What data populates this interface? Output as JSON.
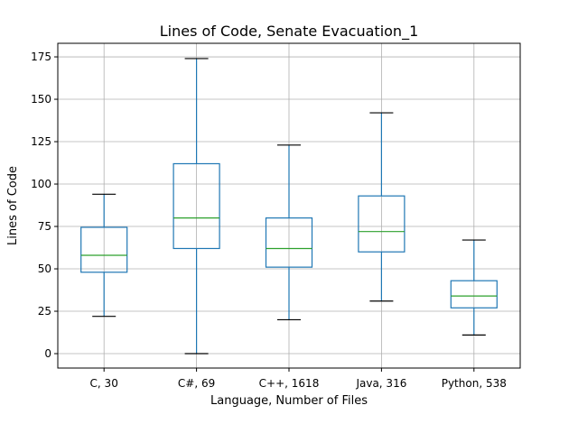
{
  "chart_data": {
    "type": "boxplot",
    "title": "Lines of Code, Senate Evacuation_1",
    "xlabel": "Language, Number of Files",
    "ylabel": "Lines of Code",
    "ylim": [
      -8.5,
      183
    ],
    "yticks": [
      0,
      25,
      50,
      75,
      100,
      125,
      150,
      175
    ],
    "grid": true,
    "categories": [
      "C, 30",
      "C#, 69",
      "C++, 1618",
      "Java, 316",
      "Python, 538"
    ],
    "boxes": [
      {
        "whisker_low": 22,
        "q1": 48,
        "median": 58,
        "q3": 74.5,
        "whisker_high": 94
      },
      {
        "whisker_low": 0,
        "q1": 62,
        "median": 80,
        "q3": 112,
        "whisker_high": 174
      },
      {
        "whisker_low": 20,
        "q1": 51,
        "median": 62,
        "q3": 80,
        "whisker_high": 123
      },
      {
        "whisker_low": 31,
        "q1": 60,
        "median": 72,
        "q3": 93,
        "whisker_high": 142
      },
      {
        "whisker_low": 11,
        "q1": 27,
        "median": 34,
        "q3": 43,
        "whisker_high": 67
      }
    ],
    "colors": {
      "box": "#1f77b4",
      "median": "#2ca02c",
      "cap": "#000000",
      "grid": "#b0b0b0"
    }
  }
}
